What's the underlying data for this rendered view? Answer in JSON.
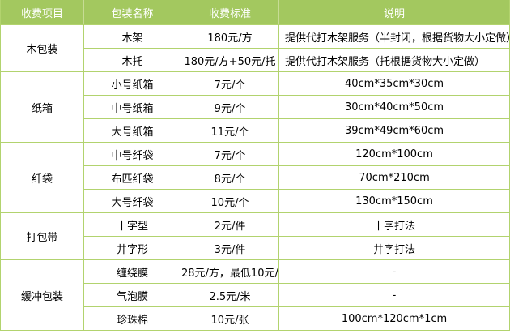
{
  "table": {
    "colors": {
      "header_bg": "#a3c85f",
      "border": "#b2d36e",
      "header_text": "#ffffff",
      "body_text": "#000000"
    },
    "headers": [
      "收费项目",
      "包装名称",
      "收费标准",
      "说明"
    ],
    "groups": [
      {
        "category": "木包装",
        "rows": [
          {
            "name": "木架",
            "price": "180元/方",
            "desc": "提供代打木架服务（半封闭，根据货物大小定做）",
            "desc_align": "left"
          },
          {
            "name": "木托",
            "price": "180元/方+50元/托",
            "desc": "提供代打木架服务（托根据货物大小定做）",
            "desc_align": "left"
          }
        ]
      },
      {
        "category": "纸箱",
        "rows": [
          {
            "name": "小号纸箱",
            "price": "7元/个",
            "desc": "40cm*35cm*30cm",
            "desc_align": "center"
          },
          {
            "name": "中号纸箱",
            "price": "9元/个",
            "desc": "30cm*40cm*50cm",
            "desc_align": "center"
          },
          {
            "name": "大号纸箱",
            "price": "11元/个",
            "desc": "39cm*49cm*60cm",
            "desc_align": "center"
          }
        ]
      },
      {
        "category": "纤袋",
        "rows": [
          {
            "name": "中号纤袋",
            "price": "7元/个",
            "desc": "120cm*100cm",
            "desc_align": "center"
          },
          {
            "name": "布匹纤袋",
            "price": "8元/个",
            "desc": "70cm*210cm",
            "desc_align": "center"
          },
          {
            "name": "大号纤袋",
            "price": "10元/个",
            "desc": "130cm*150cm",
            "desc_align": "center"
          }
        ]
      },
      {
        "category": "打包带",
        "rows": [
          {
            "name": "十字型",
            "price": "2元/件",
            "desc": "十字打法",
            "desc_align": "center"
          },
          {
            "name": "井字形",
            "price": "3元/件",
            "desc": "井字打法",
            "desc_align": "center"
          }
        ]
      },
      {
        "category": "缓冲包装",
        "rows": [
          {
            "name": "缠绕膜",
            "price": "28元/方，最低10元/票",
            "desc": "-",
            "desc_align": "center"
          },
          {
            "name": "气泡膜",
            "price": "2.5元/米",
            "desc": "-",
            "desc_align": "center"
          },
          {
            "name": "珍珠棉",
            "price": "10元/张",
            "desc": "100cm*120cm*1cm",
            "desc_align": "center"
          }
        ]
      }
    ]
  }
}
